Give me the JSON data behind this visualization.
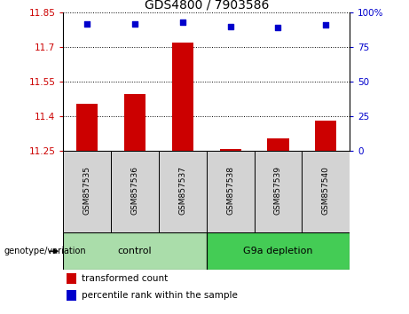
{
  "title": "GDS4800 / 7903586",
  "samples": [
    "GSM857535",
    "GSM857536",
    "GSM857537",
    "GSM857538",
    "GSM857539",
    "GSM857540"
  ],
  "bar_values": [
    11.455,
    11.495,
    11.72,
    11.257,
    11.305,
    11.38
  ],
  "percentile_values": [
    92,
    92,
    93,
    90,
    89,
    91
  ],
  "ymin": 11.25,
  "ymax": 11.85,
  "y_ticks": [
    11.25,
    11.4,
    11.55,
    11.7,
    11.85
  ],
  "y_tick_labels": [
    "11.25",
    "11.4",
    "11.55",
    "11.7",
    "11.85"
  ],
  "y2min": 0,
  "y2max": 100,
  "y2_ticks": [
    0,
    25,
    50,
    75,
    100
  ],
  "y2_tick_labels": [
    "0",
    "25",
    "50",
    "75",
    "100%"
  ],
  "bar_color": "#cc0000",
  "dot_color": "#0000cc",
  "bar_base": 11.25,
  "groups": [
    {
      "label": "control",
      "start": 0,
      "end": 3
    },
    {
      "label": "G9a depletion",
      "start": 3,
      "end": 6
    }
  ],
  "group_color_light": "#aaddaa",
  "group_color_dark": "#44cc55",
  "sample_box_color": "#d3d3d3",
  "legend_items": [
    "transformed count",
    "percentile rank within the sample"
  ],
  "legend_colors": [
    "#cc0000",
    "#0000cc"
  ],
  "genotype_label": "genotype/variation",
  "plot_bg": "#ffffff",
  "tick_label_color_left": "#cc0000",
  "tick_label_color_right": "#0000cc",
  "grid_color": "#000000",
  "title_fontsize": 10
}
